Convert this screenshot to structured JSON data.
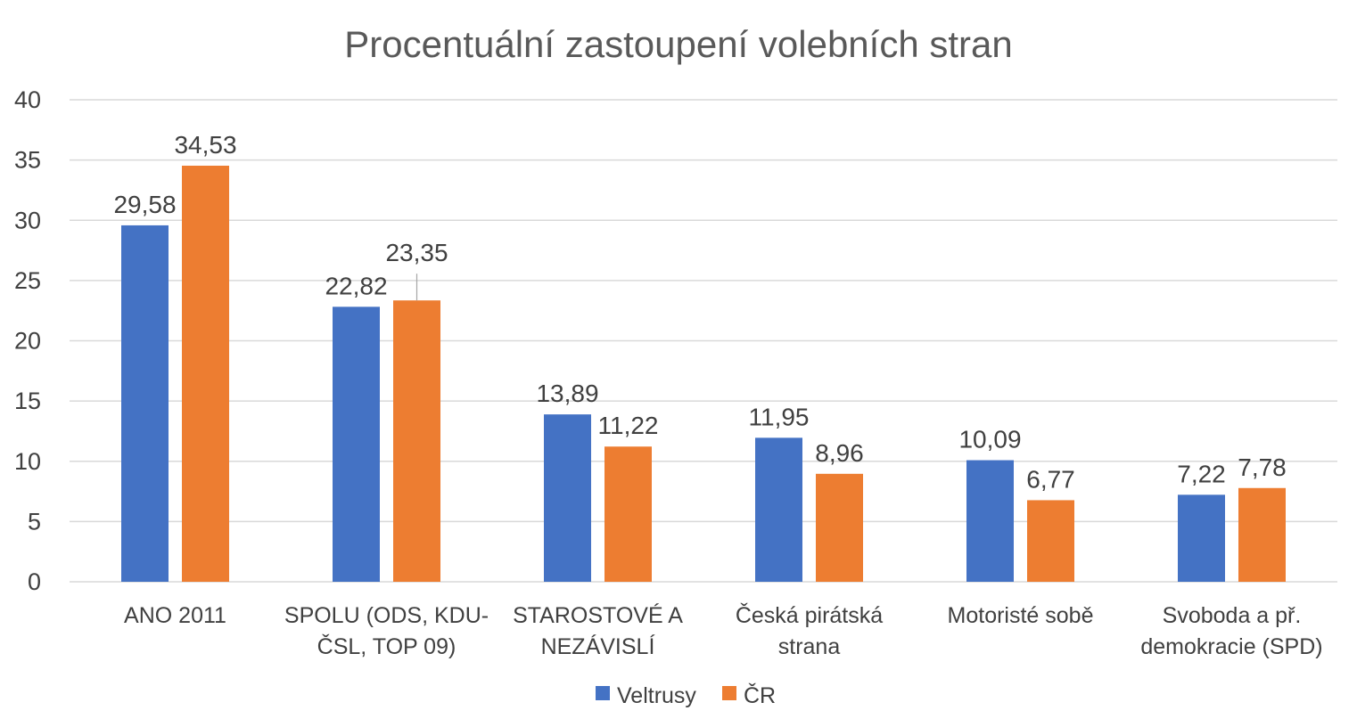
{
  "chart_data": {
    "type": "bar",
    "title": "Procentuální zastoupení volebních stran",
    "categories": [
      [
        "ANO 2011"
      ],
      [
        "SPOLU (ODS, KDU-",
        "ČSL, TOP 09)"
      ],
      [
        "STAROSTOVÉ A",
        "NEZÁVISLÍ"
      ],
      [
        "Česká pirátská",
        "strana"
      ],
      [
        "Motoristé sobě"
      ],
      [
        "Svoboda a př.",
        "demokracie (SPD)"
      ]
    ],
    "series": [
      {
        "name": "Veltrusy",
        "color": "#4472c4",
        "values": [
          29.58,
          22.82,
          13.89,
          11.95,
          10.09,
          7.22
        ],
        "labels": [
          "29,58",
          "22,82",
          "13,89",
          "11,95",
          "10,09",
          "7,22"
        ]
      },
      {
        "name": "ČR",
        "color": "#ed7d31",
        "values": [
          34.53,
          23.35,
          11.22,
          8.96,
          6.77,
          7.78
        ],
        "labels": [
          "34,53",
          "23,35",
          "11,22",
          "8,96",
          "6,77",
          "7,78"
        ]
      }
    ],
    "ylim": [
      0,
      40
    ],
    "yticks": [
      0,
      5,
      10,
      15,
      20,
      25,
      30,
      35,
      40
    ],
    "xlabel": "",
    "ylabel": "",
    "grid": true,
    "legend": "bottom"
  }
}
